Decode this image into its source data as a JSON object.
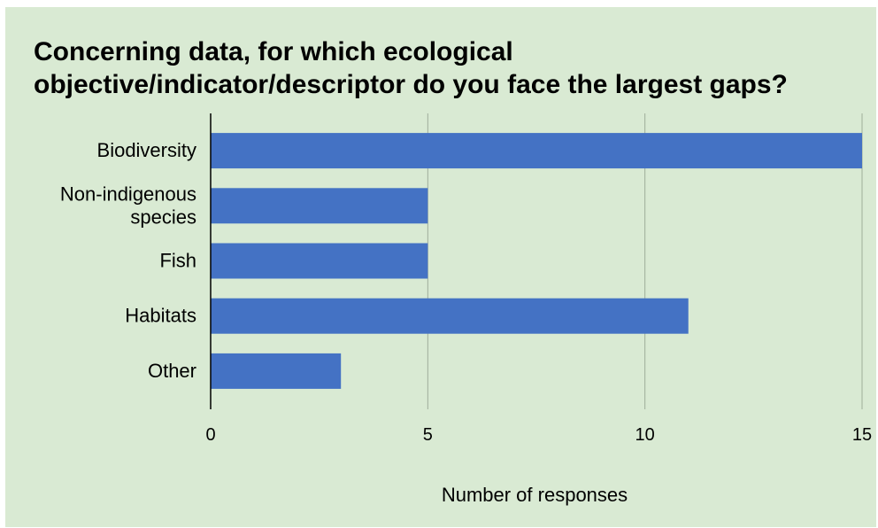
{
  "chart_data": {
    "type": "bar",
    "orientation": "horizontal",
    "title": "Concerning data, for which ecological\nobjective/indicator/descriptor do you face the largest gaps?",
    "categories": [
      "Biodiversity",
      "Non-indigenous\nspecies",
      "Fish",
      "Habitats",
      "Other"
    ],
    "values": [
      15,
      5,
      5,
      11,
      3
    ],
    "xlabel": "Number of responses",
    "ylabel": "",
    "xlim": [
      0,
      15
    ],
    "xticks": [
      0,
      5,
      10,
      15
    ],
    "grid": true,
    "legend": "none",
    "bar_color": "#4472c4",
    "background_color": "#d9ead3"
  }
}
